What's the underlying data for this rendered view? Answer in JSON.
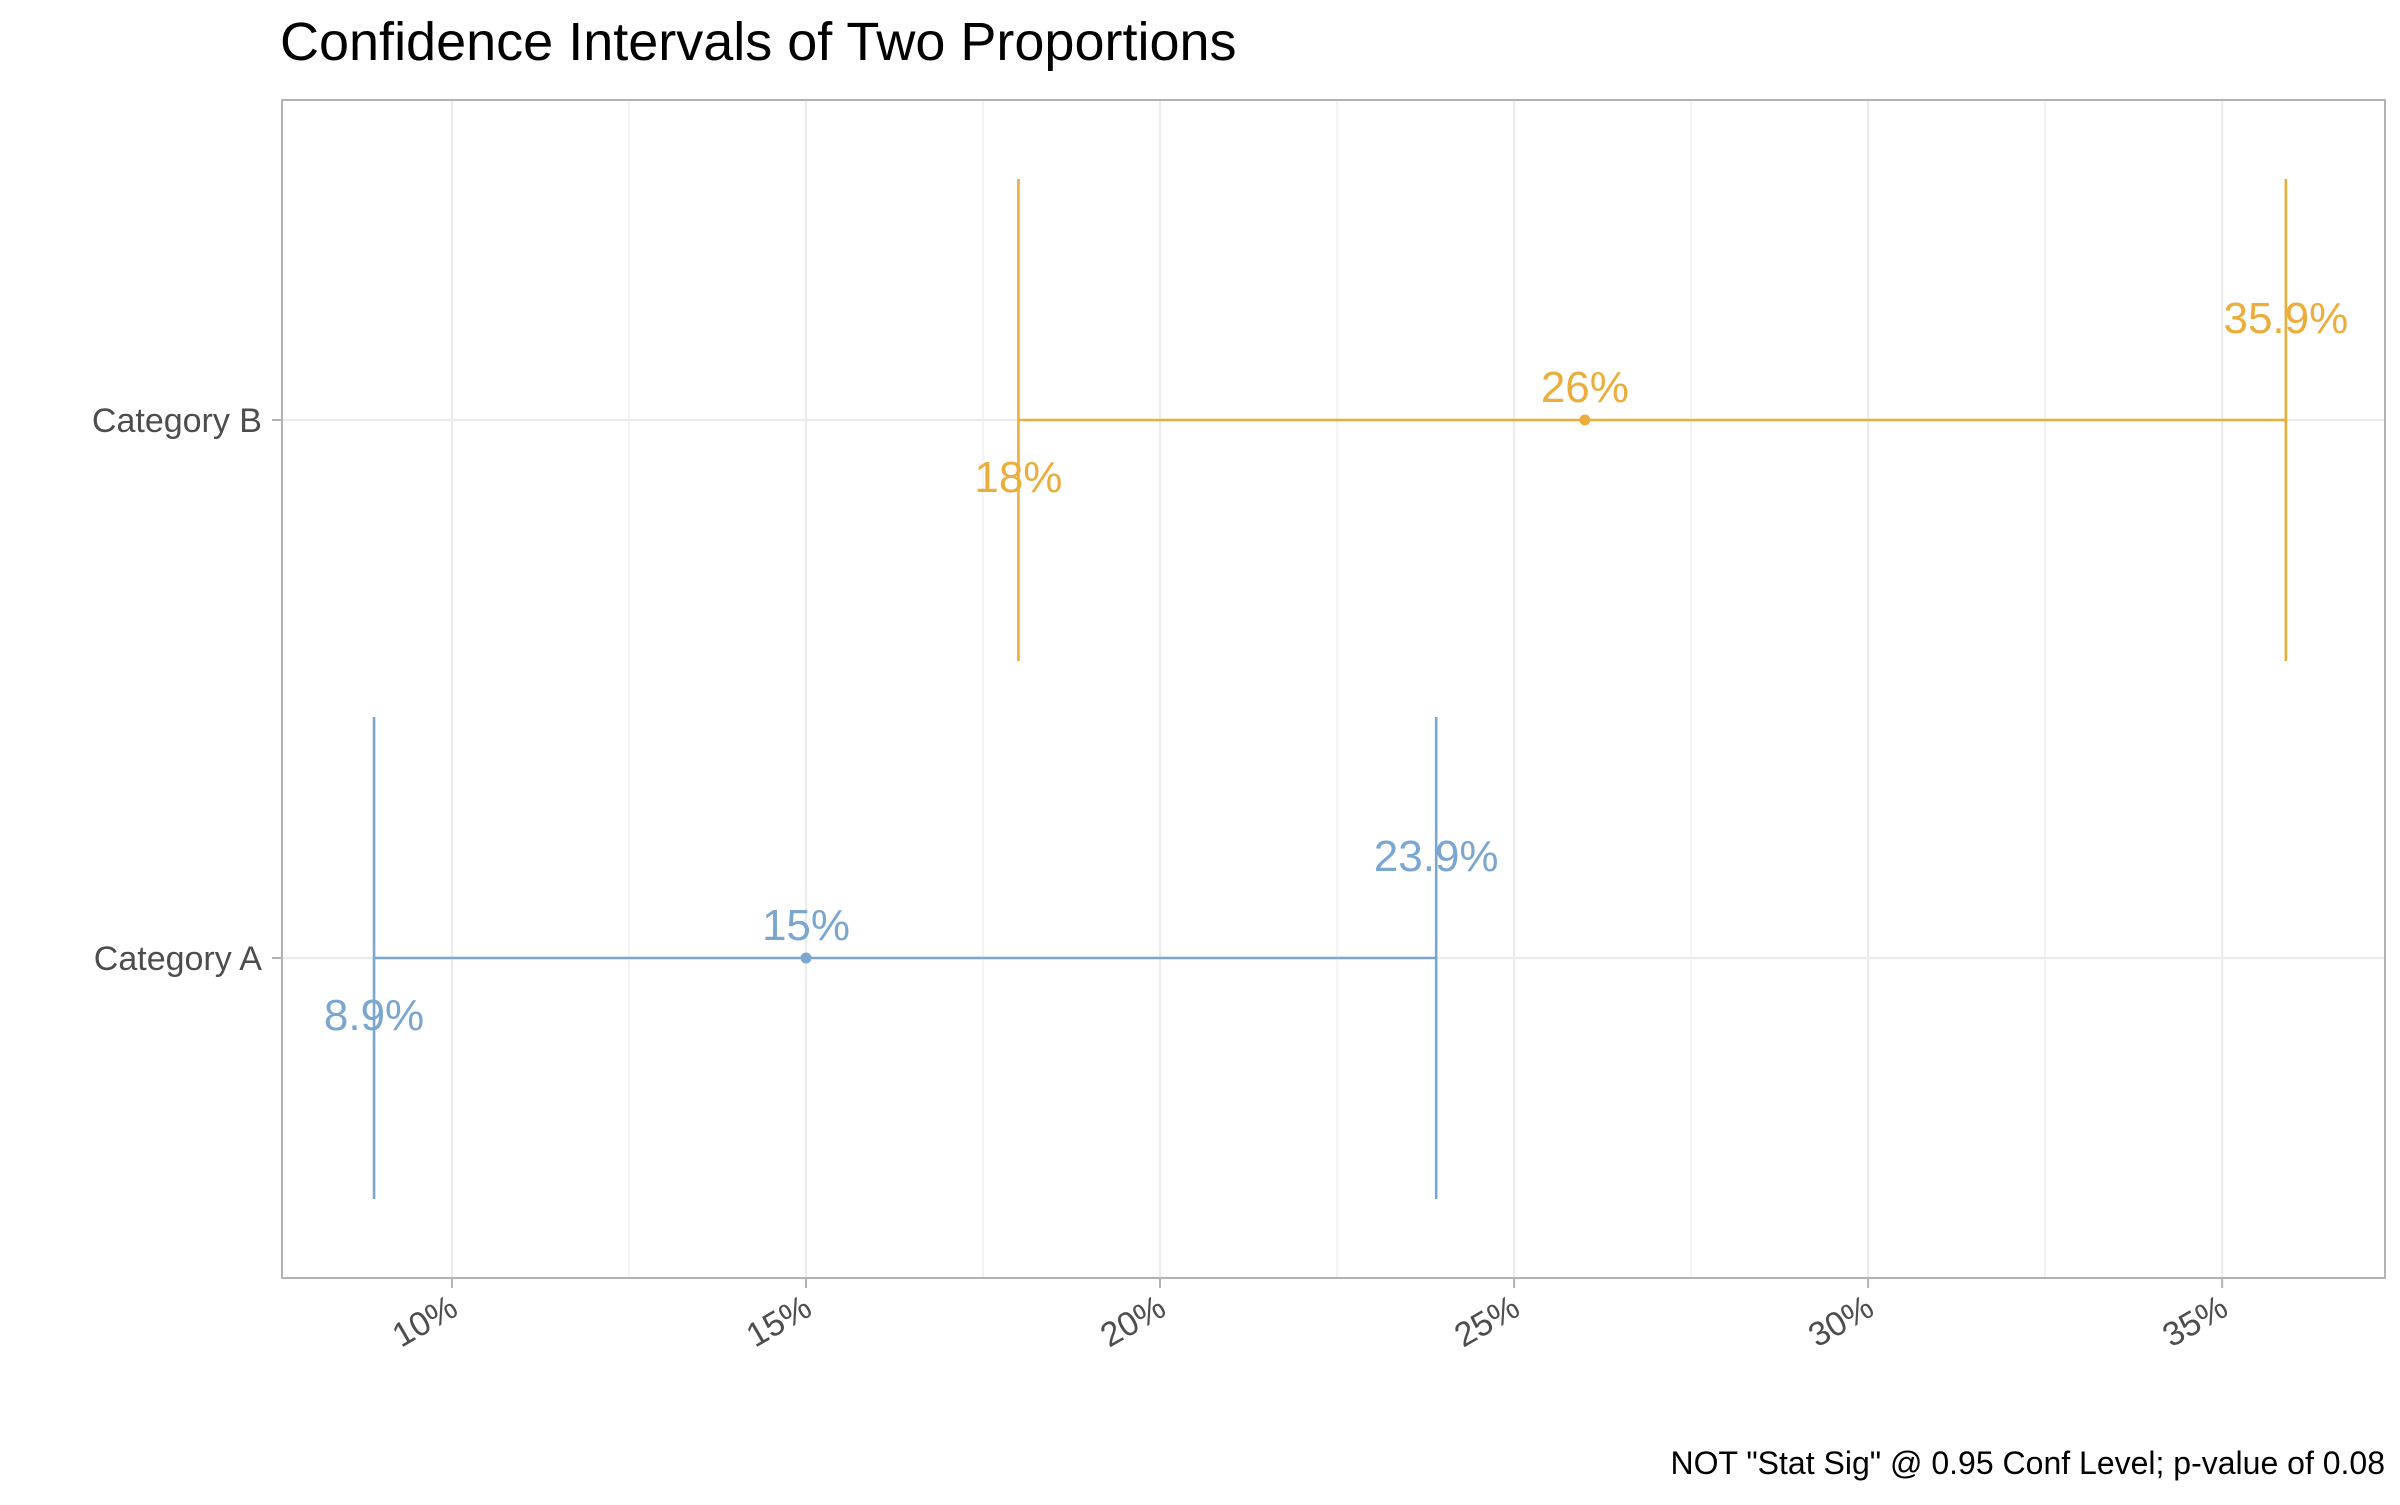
{
  "chart_data": {
    "type": "errorbar",
    "title": "Confidence Intervals of Two Proportions",
    "caption": "NOT \"Stat Sig\" @ 0.95 Conf Level; p-value of 0.08",
    "xlabel": "",
    "ylabel": "",
    "xlim": [
      7.6,
      37.3
    ],
    "x_ticks": [
      10,
      15,
      20,
      25,
      30,
      35
    ],
    "x_tick_labels": [
      "10%",
      "15%",
      "20%",
      "25%",
      "30%",
      "35%"
    ],
    "grid": true,
    "categories": [
      "Category A",
      "Category B"
    ],
    "series": [
      {
        "category": "Category A",
        "estimate": 15,
        "lower": 8.9,
        "upper": 23.9,
        "estimate_label": "15%",
        "lower_label": "8.9%",
        "upper_label": "23.9%",
        "color": "#7aa6cf"
      },
      {
        "category": "Category B",
        "estimate": 26,
        "lower": 18,
        "upper": 35.9,
        "estimate_label": "26%",
        "lower_label": "18%",
        "upper_label": "35.9%",
        "color": "#ebad3b"
      }
    ],
    "colors": {
      "grid": "#ebebeb",
      "border": "#b3b3b3",
      "tick_text": "#4d4d4d"
    }
  }
}
